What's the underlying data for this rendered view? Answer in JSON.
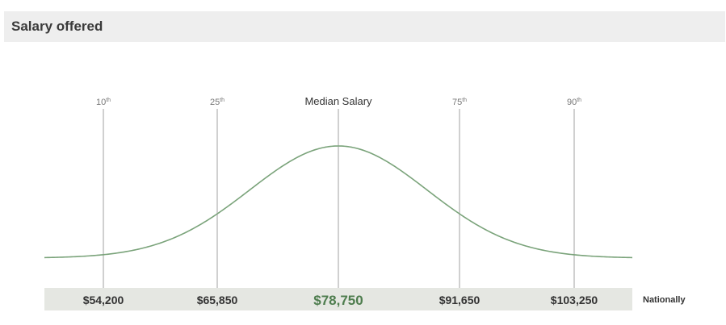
{
  "header": {
    "title": "Salary offered"
  },
  "chart_data": {
    "type": "area",
    "title": "",
    "xlabel": "",
    "ylabel": "",
    "distribution": "normal bell curve",
    "percentiles": [
      {
        "label": "10",
        "suffix": "th",
        "value": "$54,200",
        "amount": 54200
      },
      {
        "label": "25",
        "suffix": "th",
        "value": "$65,850",
        "amount": 65850
      },
      {
        "label": "Median Salary",
        "suffix": "",
        "value": "$78,750",
        "amount": 78750,
        "highlight": true
      },
      {
        "label": "75",
        "suffix": "th",
        "value": "$91,650",
        "amount": 91650
      },
      {
        "label": "90",
        "suffix": "th",
        "value": "$103,250",
        "amount": 103250
      }
    ],
    "row_label": "Nationally",
    "grid": false
  },
  "colors": {
    "curve": "#7aa37a",
    "median_value": "#4e7d4e",
    "marker_line": "#c4c4c4",
    "value_band": "#e5e7e2",
    "header_bg": "#eeeeee"
  }
}
